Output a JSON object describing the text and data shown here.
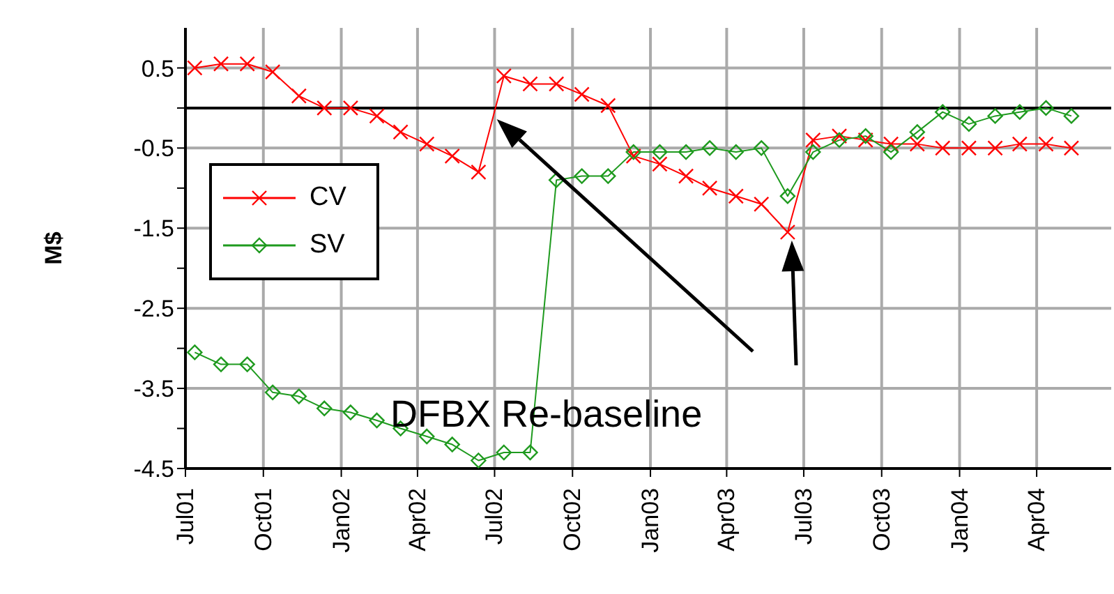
{
  "chart_data": {
    "type": "line",
    "ylabel": "M$",
    "x": [
      "2001-07-12",
      "2001-08-12",
      "2001-09-12",
      "2001-10-12",
      "2001-11-12",
      "2001-12-12",
      "2002-01-12",
      "2002-02-12",
      "2002-03-12",
      "2002-04-12",
      "2002-05-12",
      "2002-06-12",
      "2002-07-12",
      "2002-08-12",
      "2002-09-12",
      "2002-10-12",
      "2002-11-12",
      "2002-12-12",
      "2003-01-12",
      "2003-02-12",
      "2003-03-12",
      "2003-04-12",
      "2003-05-12",
      "2003-06-12",
      "2003-07-12",
      "2003-08-12",
      "2003-09-12",
      "2003-10-12",
      "2003-11-12",
      "2003-12-12",
      "2004-01-12",
      "2004-02-12",
      "2004-03-12",
      "2004-04-12",
      "2004-05-12"
    ],
    "series": [
      {
        "name": "CV",
        "color": "#ff0000",
        "marker": "cross",
        "values": [
          0.5,
          0.55,
          0.55,
          0.45,
          0.15,
          0,
          0,
          -0.1,
          -0.3,
          -0.45,
          -0.6,
          -0.8,
          0.4,
          0.3,
          0.3,
          0.17,
          0.03,
          -0.6,
          -0.7,
          -0.85,
          -1.0,
          -1.1,
          -1.2,
          -1.55,
          -0.4,
          -0.35,
          -0.4,
          -0.45,
          -0.45,
          -0.5,
          -0.5,
          -0.5,
          -0.45,
          -0.45,
          -0.5
        ]
      },
      {
        "name": "SV",
        "color": "#1e9a1e",
        "marker": "diamond",
        "values": [
          -3.05,
          -3.2,
          -3.2,
          -3.55,
          -3.6,
          -3.75,
          -3.8,
          -3.9,
          -4.0,
          -4.1,
          -4.2,
          -4.4,
          -4.3,
          -4.3,
          -0.9,
          -0.85,
          -0.85,
          -0.55,
          -0.55,
          -0.55,
          -0.5,
          -0.55,
          -0.5,
          -1.1,
          -0.55,
          -0.4,
          -0.35,
          -0.55,
          -0.3,
          -0.05,
          -0.2,
          -0.1,
          -0.05,
          0,
          -0.1
        ]
      }
    ],
    "xlim": [
      "2001-07-01",
      "2004-06-28"
    ],
    "xticks": [
      {
        "value": "2001-07-01",
        "label": "Jul01"
      },
      {
        "value": "2001-10-01",
        "label": "Oct01"
      },
      {
        "value": "2002-01-01",
        "label": "Jan02"
      },
      {
        "value": "2002-04-01",
        "label": "Apr02"
      },
      {
        "value": "2002-07-01",
        "label": "Jul02"
      },
      {
        "value": "2002-10-01",
        "label": "Oct02"
      },
      {
        "value": "2003-01-01",
        "label": "Jan03"
      },
      {
        "value": "2003-04-01",
        "label": "Apr03"
      },
      {
        "value": "2003-07-01",
        "label": "Jul03"
      },
      {
        "value": "2003-10-01",
        "label": "Oct03"
      },
      {
        "value": "2004-01-01",
        "label": "Jan04"
      },
      {
        "value": "2004-04-01",
        "label": "Apr04"
      }
    ],
    "ylim": [
      -4.5,
      1.0
    ],
    "yticks": [
      0.5,
      {
        "value": 0,
        "label": null
      },
      -0.5,
      {
        "value": -1,
        "label": null
      },
      -1.5,
      {
        "value": -2,
        "label": null
      },
      -2.5,
      {
        "value": -3,
        "label": null
      },
      -3.5,
      {
        "value": -4,
        "label": null
      },
      -4.5
    ],
    "ref_lines": [
      {
        "axis": "y",
        "value": 0,
        "color": "#000000"
      }
    ],
    "annotations": [
      "DFBX Re-baseline"
    ],
    "grid": true,
    "legend": "left",
    "line_style": "solid"
  }
}
